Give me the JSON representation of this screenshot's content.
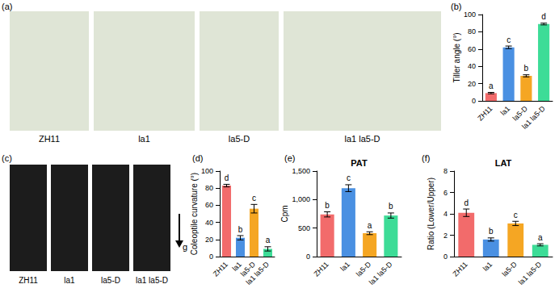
{
  "images": [
    {
      "title": "(a)",
      "labels": [
        "ZH11",
        "la1",
        "la5-D",
        "la1 la5-D"
      ]
    },
    {
      "title": "(c)",
      "labels": [
        "ZH11",
        "la1",
        "la5-D",
        "la1 la5-D"
      ],
      "annotation": "g"
    }
  ],
  "chart_data": [
    {
      "type": "bar",
      "title": "(b)",
      "ylabel": "Tiller angle (°)",
      "categories": [
        "ZH11",
        "la1",
        "la5-D",
        "la1 la5-D"
      ],
      "values": [
        9,
        62,
        29,
        89
      ],
      "errors": [
        0.8,
        1.5,
        1.2,
        1
      ],
      "annotations": [
        "a",
        "c",
        "b",
        "d"
      ],
      "colors": [
        "#f26b6b",
        "#4a90e2",
        "#f5a623",
        "#3ddc97"
      ],
      "ylim": [
        0,
        100
      ],
      "yticks": [
        0,
        20,
        40,
        60,
        80,
        100
      ]
    },
    {
      "type": "bar",
      "title": "(d)",
      "ylabel": "Coleoptile curvature (°)",
      "categories": [
        "ZH11",
        "la1",
        "la5-D",
        "la1 la5-D"
      ],
      "values": [
        83,
        22,
        56,
        9
      ],
      "errors": [
        1.5,
        2.5,
        5,
        2.5
      ],
      "annotations": [
        "d",
        "b",
        "c",
        "a"
      ],
      "colors": [
        "#f26b6b",
        "#4a90e2",
        "#f5a623",
        "#3ddc97"
      ],
      "ylim": [
        0,
        100
      ],
      "yticks": [
        0,
        20,
        40,
        60,
        80,
        100
      ]
    },
    {
      "type": "bar",
      "title": "(e)",
      "subtitle": "PAT",
      "ylabel": "Cpm",
      "categories": [
        "ZH11",
        "la1",
        "la5-D",
        "la1 la5-D"
      ],
      "values": [
        740,
        1200,
        410,
        720
      ],
      "errors": [
        45,
        60,
        25,
        45
      ],
      "annotations": [
        "b",
        "c",
        "a",
        "b"
      ],
      "colors": [
        "#f26b6b",
        "#4a90e2",
        "#f5a623",
        "#3ddc97"
      ],
      "ylim": [
        0,
        1500
      ],
      "yticks": [
        0,
        500,
        1000,
        1500
      ]
    },
    {
      "type": "bar",
      "title": "(f)",
      "subtitle": "LAT",
      "ylabel": "Ratio (Lower/Upper)",
      "categories": [
        "ZH11",
        "la1",
        "la5-D",
        "la1 la5-D"
      ],
      "values": [
        4.1,
        1.6,
        3.1,
        1.1
      ],
      "errors": [
        0.35,
        0.15,
        0.2,
        0.1
      ],
      "annotations": [
        "d",
        "b",
        "c",
        "a"
      ],
      "colors": [
        "#f26b6b",
        "#4a90e2",
        "#f5a623",
        "#3ddc97"
      ],
      "ylim": [
        0,
        8
      ],
      "yticks": [
        0,
        2,
        4,
        6,
        8
      ]
    }
  ]
}
